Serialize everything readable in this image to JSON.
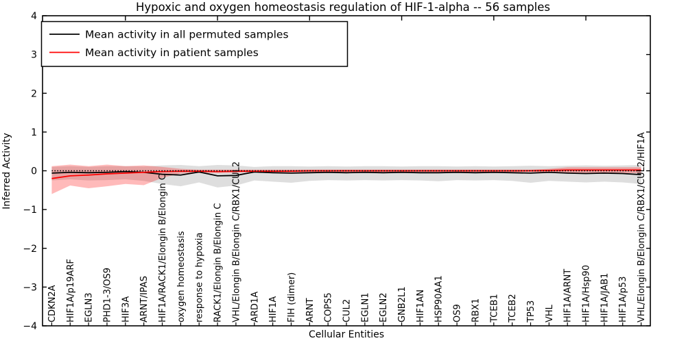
{
  "figure": {
    "background": "#ffffff",
    "axes_edge_color": "#000000"
  },
  "chart_data": {
    "type": "line",
    "title": "Hypoxic and oxygen homeostasis regulation of HIF-1-alpha -- 56 samples",
    "xlabel": "Cellular Entities",
    "ylabel": "Inferred Activity",
    "ylim": [
      -4,
      4
    ],
    "yticks": [
      -4,
      -3,
      -2,
      -1,
      0,
      1,
      2,
      3,
      4
    ],
    "grid": false,
    "zero_line": {
      "style": "dotted",
      "color": "#000000",
      "y": 0
    },
    "legend": {
      "position": "upper left"
    },
    "top_tick_indices": [
      4,
      9,
      14,
      19,
      24,
      29
    ],
    "categories": [
      "CDKN2A",
      "HIF1A/p19ARF",
      "EGLN3",
      "PHD1-3/OS9",
      "HIF3A",
      "ARNT/IPAS",
      "HIF1A/RACK1/Elongin B/Elongin C",
      "oxygen homeostasis",
      "response to hypoxia",
      "RACK1/Elongin B/Elongin C",
      "VHL/Elongin B/Elongin C/RBX1/CUL2",
      "ARD1A",
      "HIF1A",
      "FIH (dimer)",
      "ARNT",
      "COPS5",
      "CUL2",
      "EGLN1",
      "EGLN2",
      "GNB2L1",
      "HIF1AN",
      "HSP90AA1",
      "OS9",
      "RBX1",
      "TCEB1",
      "TCEB2",
      "TP53",
      "VHL",
      "HIF1A/ARNT",
      "HIF1A/Hsp90",
      "HIF1A/JAB1",
      "HIF1A/p53",
      "VHL/Elongin B/Elongin C/RBX1/CUL2/HIF1A"
    ],
    "series": [
      {
        "name": "Mean activity in all permuted samples",
        "color": "#000000",
        "values": [
          -0.06,
          -0.04,
          -0.05,
          -0.04,
          -0.02,
          -0.04,
          -0.09,
          -0.11,
          -0.03,
          -0.13,
          -0.12,
          -0.03,
          -0.05,
          -0.06,
          -0.05,
          -0.04,
          -0.05,
          -0.04,
          -0.05,
          -0.04,
          -0.05,
          -0.05,
          -0.04,
          -0.05,
          -0.04,
          -0.05,
          -0.06,
          -0.04,
          -0.06,
          -0.07,
          -0.06,
          -0.07,
          -0.1
        ],
        "band": {
          "color": "#000000",
          "opacity": 0.13,
          "lower": [
            -0.25,
            -0.22,
            -0.25,
            -0.24,
            -0.22,
            -0.26,
            -0.34,
            -0.4,
            -0.3,
            -0.43,
            -0.38,
            -0.25,
            -0.28,
            -0.31,
            -0.26,
            -0.24,
            -0.25,
            -0.24,
            -0.25,
            -0.24,
            -0.25,
            -0.27,
            -0.24,
            -0.25,
            -0.24,
            -0.26,
            -0.31,
            -0.26,
            -0.28,
            -0.3,
            -0.28,
            -0.3,
            -0.34
          ],
          "upper": [
            0.1,
            0.12,
            0.1,
            0.12,
            0.12,
            0.11,
            0.14,
            0.15,
            0.12,
            0.15,
            0.14,
            0.1,
            0.12,
            0.12,
            0.11,
            0.12,
            0.11,
            0.12,
            0.12,
            0.11,
            0.12,
            0.12,
            0.11,
            0.12,
            0.11,
            0.12,
            0.13,
            0.12,
            0.13,
            0.14,
            0.13,
            0.14,
            0.15
          ]
        }
      },
      {
        "name": "Mean activity in patient samples",
        "color": "#ff0000",
        "values": [
          -0.2,
          -0.13,
          -0.11,
          -0.08,
          -0.06,
          -0.04,
          -0.02,
          -0.01,
          -0.01,
          -0.02,
          -0.01,
          -0.01,
          -0.01,
          -0.01,
          0.0,
          0.0,
          0.0,
          0.0,
          0.0,
          0.0,
          0.0,
          0.0,
          0.0,
          0.0,
          0.0,
          0.0,
          0.0,
          0.01,
          0.02,
          0.02,
          0.02,
          0.02,
          0.02
        ],
        "band": {
          "color": "#ff0000",
          "opacity": 0.27,
          "lower": [
            -0.6,
            -0.38,
            -0.45,
            -0.4,
            -0.34,
            -0.37,
            -0.18,
            -0.07,
            -0.05,
            -0.06,
            -0.05,
            -0.04,
            -0.04,
            -0.04,
            -0.03,
            -0.03,
            -0.03,
            -0.03,
            -0.03,
            -0.03,
            -0.03,
            -0.03,
            -0.03,
            -0.03,
            -0.03,
            -0.03,
            -0.03,
            -0.04,
            -0.06,
            -0.06,
            -0.06,
            -0.06,
            -0.06
          ],
          "upper": [
            0.12,
            0.16,
            0.12,
            0.16,
            0.12,
            0.14,
            0.1,
            0.05,
            0.03,
            0.03,
            0.03,
            0.03,
            0.03,
            0.03,
            0.03,
            0.03,
            0.03,
            0.03,
            0.03,
            0.03,
            0.03,
            0.03,
            0.03,
            0.03,
            0.03,
            0.03,
            0.03,
            0.05,
            0.09,
            0.09,
            0.09,
            0.09,
            0.09
          ]
        }
      }
    ]
  }
}
